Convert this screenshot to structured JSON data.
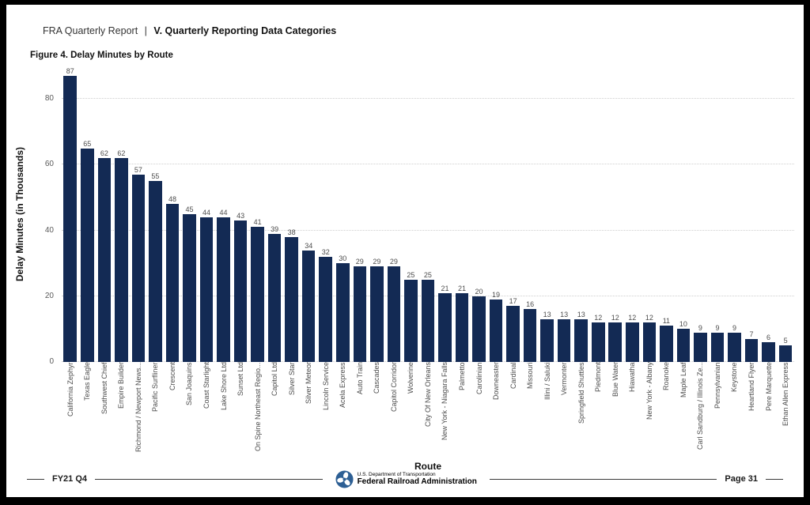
{
  "header": {
    "report_name": "FRA Quarterly Report",
    "divider": "|",
    "section_title": "V. Quarterly Reporting Data Categories"
  },
  "figure": {
    "title": "Figure 4. Delay Minutes by Route"
  },
  "chart_data": {
    "type": "bar",
    "title": "Figure 4. Delay Minutes by Route",
    "xlabel": "Route",
    "ylabel": "Delay Minutes (in Thousands)",
    "ylim": [
      0,
      90
    ],
    "yticks": [
      0,
      20,
      40,
      60,
      80
    ],
    "grid": "horizontal-dotted",
    "legend": "none",
    "bar_color": "#132A54",
    "categories": [
      "California Zephyr",
      "Texas Eagle",
      "Southwest Chief",
      "Empire Builder",
      "Richmond / Newport News...",
      "Pacific Surfliner",
      "Crescent",
      "San Joaquins",
      "Coast Starlight",
      "Lake Shore Ltd",
      "Sunset Ltd",
      "On Spine Northeast Regio...",
      "Capitol Ltd",
      "Silver Star",
      "Silver Meteor",
      "Lincoln Service",
      "Acela Express",
      "Auto Train",
      "Cascades",
      "Capitol Corridor",
      "Wolverine",
      "City Of New Orleans",
      "New York - Niagara Falls",
      "Palmetto",
      "Carolinian",
      "Downeaster",
      "Cardinal",
      "Missouri",
      "Illini / Saluki",
      "Vermonter",
      "Springfield Shuttles",
      "Piedmont",
      "Blue Water",
      "Hiawatha",
      "New York - Albany",
      "Roanoke",
      "Maple Leaf",
      "Carl Sandburg / Illinois Ze...",
      "Pennsylvanian",
      "Keystone",
      "Heartland Flyer",
      "Pere Marquette",
      "Ethan Allen Express"
    ],
    "values": [
      87,
      65,
      62,
      62,
      57,
      55,
      48,
      45,
      44,
      44,
      43,
      41,
      39,
      38,
      34,
      32,
      30,
      29,
      29,
      29,
      25,
      25,
      21,
      21,
      20,
      19,
      17,
      16,
      13,
      13,
      13,
      12,
      12,
      12,
      12,
      11,
      10,
      9,
      9,
      9,
      7,
      6,
      5
    ]
  },
  "footer": {
    "fiscal_quarter": "FY21 Q4",
    "page_label": "Page 31",
    "agency_line1": "U.S. Department of Transportation",
    "agency_line2": "Federal Railroad Administration",
    "logo_color": "#2D5F94",
    "text_color": "#3A6A99"
  }
}
